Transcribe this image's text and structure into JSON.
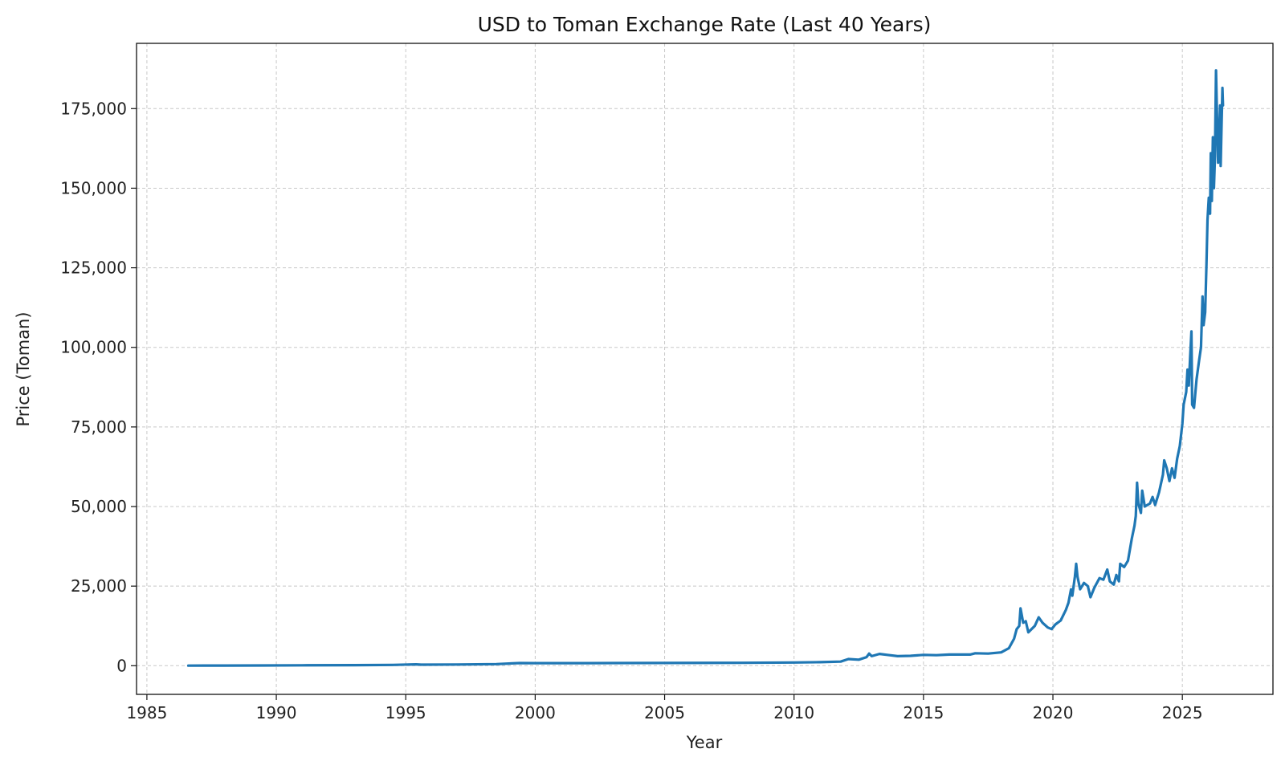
{
  "chart_data": {
    "type": "line",
    "title": "USD to Toman Exchange Rate (Last 40 Years)",
    "xlabel": "Year",
    "ylabel": "Price (Toman)",
    "xlim": [
      1984.6,
      2028.5
    ],
    "ylim": [
      -9000,
      195500
    ],
    "x_ticks": [
      1985,
      1990,
      1995,
      2000,
      2005,
      2010,
      2015,
      2020,
      2025
    ],
    "x_tick_labels": [
      "1985",
      "1990",
      "1995",
      "2000",
      "2005",
      "2010",
      "2015",
      "2020",
      "2025"
    ],
    "y_ticks": [
      0,
      25000,
      50000,
      75000,
      100000,
      125000,
      150000,
      175000
    ],
    "y_tick_labels": [
      "0",
      "25,000",
      "50,000",
      "75,000",
      "100,000",
      "125,000",
      "150,000",
      "175,000"
    ],
    "grid": true,
    "line_color": "#1f77b4",
    "series": [
      {
        "points": [
          [
            1986.6,
            20
          ],
          [
            1988.0,
            40
          ],
          [
            1989.5,
            80
          ],
          [
            1991.0,
            120
          ],
          [
            1993.0,
            170
          ],
          [
            1994.5,
            250
          ],
          [
            1995.4,
            420
          ],
          [
            1995.6,
            320
          ],
          [
            1997.0,
            380
          ],
          [
            1998.5,
            500
          ],
          [
            1999.4,
            830
          ],
          [
            2000.0,
            820
          ],
          [
            2002.0,
            800
          ],
          [
            2005.0,
            850
          ],
          [
            2008.0,
            900
          ],
          [
            2010.0,
            1000
          ],
          [
            2011.0,
            1100
          ],
          [
            2011.8,
            1300
          ],
          [
            2012.1,
            2100
          ],
          [
            2012.5,
            1900
          ],
          [
            2012.8,
            2700
          ],
          [
            2012.9,
            3800
          ],
          [
            2013.0,
            3000
          ],
          [
            2013.3,
            3700
          ],
          [
            2013.6,
            3400
          ],
          [
            2014.0,
            3000
          ],
          [
            2014.5,
            3100
          ],
          [
            2015.0,
            3400
          ],
          [
            2015.5,
            3300
          ],
          [
            2016.0,
            3500
          ],
          [
            2016.8,
            3500
          ],
          [
            2017.0,
            3900
          ],
          [
            2017.5,
            3800
          ],
          [
            2018.0,
            4200
          ],
          [
            2018.3,
            5500
          ],
          [
            2018.5,
            8500
          ],
          [
            2018.6,
            11500
          ],
          [
            2018.7,
            12500
          ],
          [
            2018.75,
            18000
          ],
          [
            2018.85,
            13500
          ],
          [
            2018.95,
            14000
          ],
          [
            2019.05,
            10500
          ],
          [
            2019.3,
            12500
          ],
          [
            2019.45,
            15200
          ],
          [
            2019.6,
            13500
          ],
          [
            2019.8,
            12000
          ],
          [
            2019.95,
            11500
          ],
          [
            2020.1,
            13000
          ],
          [
            2020.3,
            14200
          ],
          [
            2020.5,
            17500
          ],
          [
            2020.6,
            19800
          ],
          [
            2020.7,
            24000
          ],
          [
            2020.75,
            22000
          ],
          [
            2020.85,
            28000
          ],
          [
            2020.9,
            32000
          ],
          [
            2020.95,
            28000
          ],
          [
            2021.05,
            24000
          ],
          [
            2021.2,
            26000
          ],
          [
            2021.35,
            25000
          ],
          [
            2021.45,
            21500
          ],
          [
            2021.6,
            24500
          ],
          [
            2021.8,
            27500
          ],
          [
            2021.95,
            27000
          ],
          [
            2022.1,
            30200
          ],
          [
            2022.2,
            26500
          ],
          [
            2022.35,
            25500
          ],
          [
            2022.45,
            28500
          ],
          [
            2022.55,
            26500
          ],
          [
            2022.6,
            32000
          ],
          [
            2022.75,
            31000
          ],
          [
            2022.9,
            33000
          ],
          [
            2023.05,
            40000
          ],
          [
            2023.15,
            44000
          ],
          [
            2023.2,
            47000
          ],
          [
            2023.25,
            57500
          ],
          [
            2023.3,
            51000
          ],
          [
            2023.4,
            48000
          ],
          [
            2023.45,
            55000
          ],
          [
            2023.55,
            50000
          ],
          [
            2023.75,
            51000
          ],
          [
            2023.85,
            53000
          ],
          [
            2023.95,
            50500
          ],
          [
            2024.1,
            54500
          ],
          [
            2024.25,
            60000
          ],
          [
            2024.3,
            64500
          ],
          [
            2024.4,
            62000
          ],
          [
            2024.5,
            58000
          ],
          [
            2024.6,
            62000
          ],
          [
            2024.7,
            59000
          ],
          [
            2024.8,
            65000
          ],
          [
            2024.9,
            69000
          ],
          [
            2025.0,
            76000
          ],
          [
            2025.05,
            82000
          ],
          [
            2025.15,
            86000
          ],
          [
            2025.2,
            93000
          ],
          [
            2025.25,
            88000
          ],
          [
            2025.3,
            97000
          ],
          [
            2025.35,
            105000
          ],
          [
            2025.38,
            82000
          ],
          [
            2025.45,
            81000
          ],
          [
            2025.55,
            90000
          ],
          [
            2025.65,
            96000
          ],
          [
            2025.72,
            100000
          ],
          [
            2025.78,
            116000
          ],
          [
            2025.82,
            107000
          ],
          [
            2025.88,
            111000
          ],
          [
            2025.93,
            126000
          ],
          [
            2025.97,
            140000
          ],
          [
            2026.02,
            147000
          ],
          [
            2026.07,
            142000
          ],
          [
            2026.1,
            161000
          ],
          [
            2026.14,
            146000
          ],
          [
            2026.18,
            166000
          ],
          [
            2026.22,
            150000
          ],
          [
            2026.26,
            160000
          ],
          [
            2026.3,
            187000
          ],
          [
            2026.34,
            172000
          ],
          [
            2026.38,
            158000
          ],
          [
            2026.42,
            167000
          ],
          [
            2026.46,
            176000
          ],
          [
            2026.48,
            157000
          ],
          [
            2026.52,
            172000
          ],
          [
            2026.55,
            181500
          ],
          [
            2026.57,
            176000
          ]
        ]
      }
    ]
  }
}
